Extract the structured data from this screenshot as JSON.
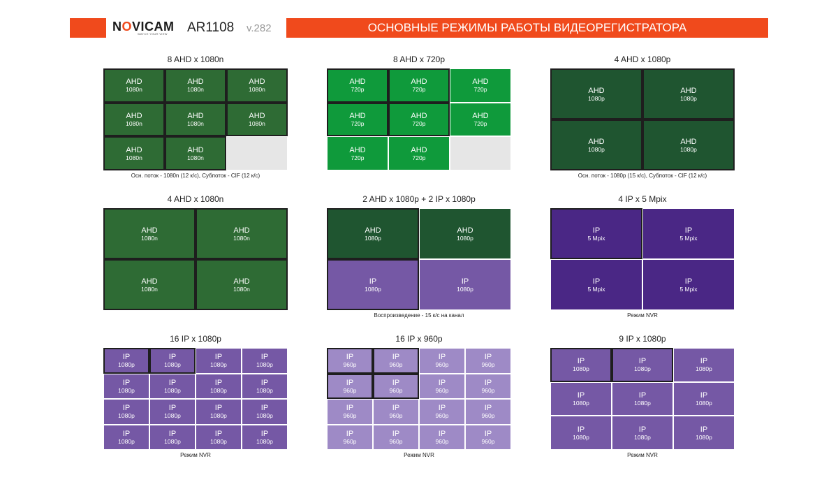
{
  "header": {
    "brand_nov": "N",
    "brand_o": "O",
    "brand_rest": "VICAM",
    "brand_tagline": "WATCH YOUR VIEW",
    "model": "AR1108",
    "version": "v.282",
    "title": "ОСНОВНЫЕ РЕЖИМЫ РАБОТЫ ВИДЕОРЕГИСТРАТОРА",
    "colors": {
      "accent": "#f04a1c"
    }
  },
  "colors": {
    "ahd_1080n": "#2e6b34",
    "ahd_720p": "#0f9a3b",
    "ahd_1080p": "#1f5530",
    "ip_5mpix": "#4a2785",
    "ip_1080p": "#7558a5",
    "ip_960p": "#9e8ac6",
    "empty": "#e6e6e6"
  },
  "panels": [
    {
      "title": "8 AHD x 1080n",
      "cols": 3,
      "rows": 3,
      "cells": [
        {
          "l1": "AHD",
          "l2": "1080n",
          "c": "ahd_1080n",
          "m": true
        },
        {
          "l1": "AHD",
          "l2": "1080n",
          "c": "ahd_1080n",
          "m": true
        },
        {
          "l1": "AHD",
          "l2": "1080n",
          "c": "ahd_1080n",
          "m": true
        },
        {
          "l1": "AHD",
          "l2": "1080n",
          "c": "ahd_1080n",
          "m": true
        },
        {
          "l1": "AHD",
          "l2": "1080n",
          "c": "ahd_1080n",
          "m": true
        },
        {
          "l1": "AHD",
          "l2": "1080n",
          "c": "ahd_1080n",
          "m": true
        },
        {
          "l1": "AHD",
          "l2": "1080n",
          "c": "ahd_1080n",
          "m": true
        },
        {
          "l1": "AHD",
          "l2": "1080n",
          "c": "ahd_1080n",
          "m": true
        },
        {
          "l1": "",
          "l2": "",
          "c": "empty",
          "m": false
        }
      ],
      "caption": "Осн. поток - 1080n (12 к/с), Субпоток - CIF (12 к/с)"
    },
    {
      "title": "8 AHD x 720p",
      "cols": 3,
      "rows": 3,
      "cells": [
        {
          "l1": "AHD",
          "l2": "720p",
          "c": "ahd_720p",
          "m": true
        },
        {
          "l1": "AHD",
          "l2": "720p",
          "c": "ahd_720p",
          "m": true
        },
        {
          "l1": "AHD",
          "l2": "720p",
          "c": "ahd_720p",
          "m": false
        },
        {
          "l1": "AHD",
          "l2": "720p",
          "c": "ahd_720p",
          "m": true
        },
        {
          "l1": "AHD",
          "l2": "720p",
          "c": "ahd_720p",
          "m": true
        },
        {
          "l1": "AHD",
          "l2": "720p",
          "c": "ahd_720p",
          "m": false
        },
        {
          "l1": "AHD",
          "l2": "720p",
          "c": "ahd_720p",
          "m": false
        },
        {
          "l1": "AHD",
          "l2": "720p",
          "c": "ahd_720p",
          "m": false
        },
        {
          "l1": "",
          "l2": "",
          "c": "empty",
          "m": false
        }
      ],
      "caption": ""
    },
    {
      "title": "4 AHD x 1080p",
      "cols": 2,
      "rows": 2,
      "cells": [
        {
          "l1": "AHD",
          "l2": "1080p",
          "c": "ahd_1080p",
          "m": true
        },
        {
          "l1": "AHD",
          "l2": "1080p",
          "c": "ahd_1080p",
          "m": true
        },
        {
          "l1": "AHD",
          "l2": "1080p",
          "c": "ahd_1080p",
          "m": true
        },
        {
          "l1": "AHD",
          "l2": "1080p",
          "c": "ahd_1080p",
          "m": true
        }
      ],
      "caption": "Осн. поток - 1080p (15 к/с), Субпоток - CIF (12 к/с)"
    },
    {
      "title": "4 AHD x 1080n",
      "cols": 2,
      "rows": 2,
      "cells": [
        {
          "l1": "AHD",
          "l2": "1080n",
          "c": "ahd_1080n",
          "m": true
        },
        {
          "l1": "AHD",
          "l2": "1080n",
          "c": "ahd_1080n",
          "m": true
        },
        {
          "l1": "AHD",
          "l2": "1080n",
          "c": "ahd_1080n",
          "m": true
        },
        {
          "l1": "AHD",
          "l2": "1080n",
          "c": "ahd_1080n",
          "m": true
        }
      ],
      "caption": ""
    },
    {
      "title": "2 AHD x 1080p + 2 IP x 1080p",
      "cols": 2,
      "rows": 2,
      "cells": [
        {
          "l1": "AHD",
          "l2": "1080p",
          "c": "ahd_1080p",
          "m": true
        },
        {
          "l1": "AHD",
          "l2": "1080p",
          "c": "ahd_1080p",
          "m": false
        },
        {
          "l1": "IP",
          "l2": "1080p",
          "c": "ip_1080p",
          "m": true
        },
        {
          "l1": "IP",
          "l2": "1080p",
          "c": "ip_1080p",
          "m": false
        }
      ],
      "caption": "Воспроизведение - 15 к/с на канал"
    },
    {
      "title": "4 IP x 5 Mpix",
      "cols": 2,
      "rows": 2,
      "cells": [
        {
          "l1": "IP",
          "l2": "5 Mpix",
          "c": "ip_5mpix",
          "m": true
        },
        {
          "l1": "IP",
          "l2": "5 Mpix",
          "c": "ip_5mpix",
          "m": false
        },
        {
          "l1": "IP",
          "l2": "5 Mpix",
          "c": "ip_5mpix",
          "m": false
        },
        {
          "l1": "IP",
          "l2": "5 Mpix",
          "c": "ip_5mpix",
          "m": false
        }
      ],
      "caption": "Режим NVR"
    },
    {
      "title": "16 IP x 1080p",
      "cols": 4,
      "rows": 4,
      "cells": [
        {
          "l1": "IP",
          "l2": "1080p",
          "c": "ip_1080p",
          "m": true
        },
        {
          "l1": "IP",
          "l2": "1080p",
          "c": "ip_1080p",
          "m": true
        },
        {
          "l1": "IP",
          "l2": "1080p",
          "c": "ip_1080p",
          "m": false
        },
        {
          "l1": "IP",
          "l2": "1080p",
          "c": "ip_1080p",
          "m": false
        },
        {
          "l1": "IP",
          "l2": "1080p",
          "c": "ip_1080p",
          "m": false
        },
        {
          "l1": "IP",
          "l2": "1080p",
          "c": "ip_1080p",
          "m": false
        },
        {
          "l1": "IP",
          "l2": "1080p",
          "c": "ip_1080p",
          "m": false
        },
        {
          "l1": "IP",
          "l2": "1080p",
          "c": "ip_1080p",
          "m": false
        },
        {
          "l1": "IP",
          "l2": "1080p",
          "c": "ip_1080p",
          "m": false
        },
        {
          "l1": "IP",
          "l2": "1080p",
          "c": "ip_1080p",
          "m": false
        },
        {
          "l1": "IP",
          "l2": "1080p",
          "c": "ip_1080p",
          "m": false
        },
        {
          "l1": "IP",
          "l2": "1080p",
          "c": "ip_1080p",
          "m": false
        },
        {
          "l1": "IP",
          "l2": "1080p",
          "c": "ip_1080p",
          "m": false
        },
        {
          "l1": "IP",
          "l2": "1080p",
          "c": "ip_1080p",
          "m": false
        },
        {
          "l1": "IP",
          "l2": "1080p",
          "c": "ip_1080p",
          "m": false
        },
        {
          "l1": "IP",
          "l2": "1080p",
          "c": "ip_1080p",
          "m": false
        }
      ],
      "caption": "Режим NVR"
    },
    {
      "title": "16 IP x 960p",
      "cols": 4,
      "rows": 4,
      "cells": [
        {
          "l1": "IP",
          "l2": "960p",
          "c": "ip_960p",
          "m": true
        },
        {
          "l1": "IP",
          "l2": "960p",
          "c": "ip_960p",
          "m": true
        },
        {
          "l1": "IP",
          "l2": "960p",
          "c": "ip_960p",
          "m": false
        },
        {
          "l1": "IP",
          "l2": "960p",
          "c": "ip_960p",
          "m": false
        },
        {
          "l1": "IP",
          "l2": "960p",
          "c": "ip_960p",
          "m": true
        },
        {
          "l1": "IP",
          "l2": "960p",
          "c": "ip_960p",
          "m": true
        },
        {
          "l1": "IP",
          "l2": "960p",
          "c": "ip_960p",
          "m": false
        },
        {
          "l1": "IP",
          "l2": "960p",
          "c": "ip_960p",
          "m": false
        },
        {
          "l1": "IP",
          "l2": "960p",
          "c": "ip_960p",
          "m": false
        },
        {
          "l1": "IP",
          "l2": "960p",
          "c": "ip_960p",
          "m": false
        },
        {
          "l1": "IP",
          "l2": "960p",
          "c": "ip_960p",
          "m": false
        },
        {
          "l1": "IP",
          "l2": "960p",
          "c": "ip_960p",
          "m": false
        },
        {
          "l1": "IP",
          "l2": "960p",
          "c": "ip_960p",
          "m": false
        },
        {
          "l1": "IP",
          "l2": "960p",
          "c": "ip_960p",
          "m": false
        },
        {
          "l1": "IP",
          "l2": "960p",
          "c": "ip_960p",
          "m": false
        },
        {
          "l1": "IP",
          "l2": "960p",
          "c": "ip_960p",
          "m": false
        }
      ],
      "caption": "Режим NVR"
    },
    {
      "title": "9 IP x 1080p",
      "cols": 3,
      "rows": 3,
      "cells": [
        {
          "l1": "IP",
          "l2": "1080p",
          "c": "ip_1080p",
          "m": true
        },
        {
          "l1": "IP",
          "l2": "1080p",
          "c": "ip_1080p",
          "m": true
        },
        {
          "l1": "IP",
          "l2": "1080p",
          "c": "ip_1080p",
          "m": false
        },
        {
          "l1": "IP",
          "l2": "1080p",
          "c": "ip_1080p",
          "m": false
        },
        {
          "l1": "IP",
          "l2": "1080p",
          "c": "ip_1080p",
          "m": false
        },
        {
          "l1": "IP",
          "l2": "1080p",
          "c": "ip_1080p",
          "m": false
        },
        {
          "l1": "IP",
          "l2": "1080p",
          "c": "ip_1080p",
          "m": false
        },
        {
          "l1": "IP",
          "l2": "1080p",
          "c": "ip_1080p",
          "m": false
        },
        {
          "l1": "IP",
          "l2": "1080p",
          "c": "ip_1080p",
          "m": false
        }
      ],
      "caption": "Режим NVR"
    }
  ]
}
